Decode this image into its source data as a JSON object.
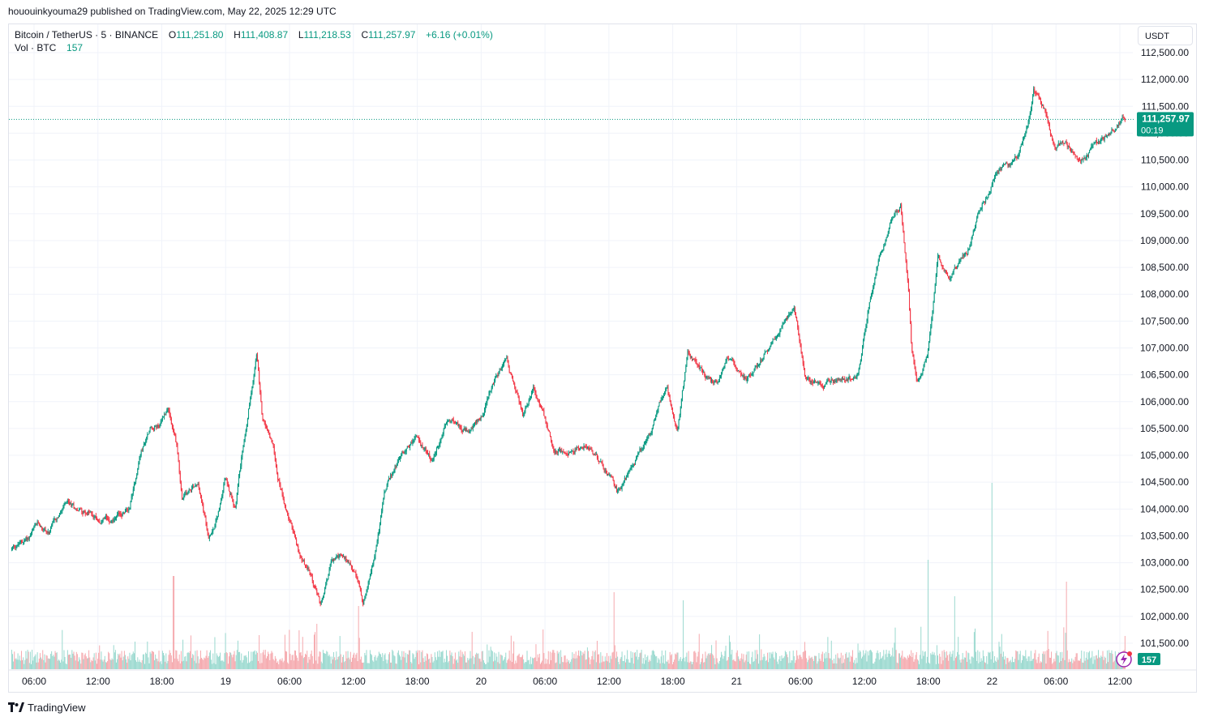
{
  "header": {
    "published_text": "hououinkyouma29 published on TradingView.com, May 22, 2025 12:29 UTC"
  },
  "legend": {
    "symbol": "Bitcoin / TetherUS · 5 · BINANCE",
    "open_label": "O",
    "open": "111,251.80",
    "high_label": "H",
    "high": "111,408.87",
    "low_label": "L",
    "low": "111,218.53",
    "close_label": "C",
    "close": "111,257.97",
    "change": "+6.16 (+0.01%)",
    "vol_label": "Vol · BTC",
    "vol_value": "157"
  },
  "currency_button": "USDT",
  "footer": {
    "brand": "TradingView"
  },
  "colors": {
    "up": "#089981",
    "down": "#f23645",
    "grid": "#f0f3fa",
    "vol_up": "#9ad9cf",
    "vol_down": "#f5a9ae"
  },
  "chart_data": {
    "type": "candlestick",
    "interval": "5",
    "y_tick_labels": [
      "112,500.00",
      "112,000.00",
      "111,500.00",
      "111,000.00",
      "110,500.00",
      "110,000.00",
      "109,500.00",
      "109,000.00",
      "108,500.00",
      "108,000.00",
      "107,500.00",
      "107,000.00",
      "106,500.00",
      "106,000.00",
      "105,500.00",
      "105,000.00",
      "104,500.00",
      "104,000.00",
      "103,500.00",
      "103,000.00",
      "102,500.00",
      "102,000.00",
      "101,500.00"
    ],
    "y_ticks": [
      112500,
      112000,
      111500,
      111000,
      110500,
      110000,
      109500,
      109000,
      108500,
      108000,
      107500,
      107000,
      106500,
      106000,
      105500,
      105000,
      104500,
      104000,
      103500,
      103000,
      102500,
      102000,
      101500
    ],
    "x_tick_labels": [
      "06:00",
      "12:00",
      "18:00",
      "19",
      "06:00",
      "12:00",
      "18:00",
      "20",
      "06:00",
      "12:00",
      "18:00",
      "21",
      "06:00",
      "12:00",
      "18:00",
      "22",
      "06:00",
      "12:00"
    ],
    "x_tick_hours": [
      6,
      12,
      18,
      24,
      30,
      36,
      42,
      48,
      54,
      60,
      66,
      72,
      78,
      84,
      90,
      96,
      102,
      108
    ],
    "time_start_hours": 3.9,
    "time_end_hours": 108.5,
    "price_path": [
      [
        3.9,
        103250
      ],
      [
        5.5,
        103450
      ],
      [
        6.5,
        103700
      ],
      [
        7.5,
        103550
      ],
      [
        9,
        104050
      ],
      [
        11,
        103950
      ],
      [
        12.5,
        103800
      ],
      [
        14,
        103850
      ],
      [
        15,
        104000
      ],
      [
        16,
        105000
      ],
      [
        17,
        105500
      ],
      [
        18,
        105600
      ],
      [
        18.7,
        105900
      ],
      [
        19.5,
        105200
      ],
      [
        20,
        104150
      ],
      [
        21.5,
        104550
      ],
      [
        22.5,
        103400
      ],
      [
        23.5,
        104000
      ],
      [
        24,
        104550
      ],
      [
        25,
        104100
      ],
      [
        26,
        105600
      ],
      [
        27,
        106900
      ],
      [
        27.5,
        105700
      ],
      [
        28.5,
        105200
      ],
      [
        29,
        104600
      ],
      [
        30,
        103900
      ],
      [
        31,
        103150
      ],
      [
        32,
        102800
      ],
      [
        33,
        102200
      ],
      [
        34,
        103000
      ],
      [
        35,
        103100
      ],
      [
        36,
        102950
      ],
      [
        37,
        102250
      ],
      [
        38,
        103000
      ],
      [
        39,
        104300
      ],
      [
        40.5,
        105000
      ],
      [
        42,
        105350
      ],
      [
        43.5,
        104850
      ],
      [
        45,
        105700
      ],
      [
        47,
        105400
      ],
      [
        48,
        105700
      ],
      [
        49.5,
        106400
      ],
      [
        50.5,
        106800
      ],
      [
        52,
        105700
      ],
      [
        53,
        106300
      ],
      [
        54,
        105700
      ],
      [
        55,
        105100
      ],
      [
        56.5,
        105100
      ],
      [
        58,
        105200
      ],
      [
        59.5,
        104750
      ],
      [
        61,
        104300
      ],
      [
        62.5,
        104900
      ],
      [
        64,
        105400
      ],
      [
        65.5,
        106350
      ],
      [
        66.5,
        105450
      ],
      [
        67.5,
        106900
      ],
      [
        69,
        106500
      ],
      [
        70,
        106300
      ],
      [
        71.5,
        106800
      ],
      [
        73,
        106400
      ],
      [
        75,
        107000
      ],
      [
        76.5,
        107500
      ],
      [
        77.5,
        107850
      ],
      [
        78.5,
        106500
      ],
      [
        80,
        106250
      ],
      [
        82,
        106400
      ],
      [
        83.5,
        106500
      ],
      [
        84.5,
        107800
      ],
      [
        85.5,
        108700
      ],
      [
        86.5,
        109300
      ],
      [
        87.5,
        109650
      ],
      [
        88.2,
        108200
      ],
      [
        88.5,
        107100
      ],
      [
        89,
        106300
      ],
      [
        90,
        106900
      ],
      [
        91,
        108700
      ],
      [
        92,
        108300
      ],
      [
        93,
        108600
      ],
      [
        94,
        108900
      ],
      [
        95,
        109650
      ],
      [
        96.5,
        110200
      ],
      [
        97.5,
        110400
      ],
      [
        98.5,
        110500
      ],
      [
        99.5,
        111200
      ],
      [
        100,
        111800
      ],
      [
        101,
        111400
      ],
      [
        102,
        110700
      ],
      [
        103,
        110850
      ],
      [
        104,
        110500
      ],
      [
        105,
        110600
      ],
      [
        106.2,
        110850
      ],
      [
        107.5,
        111100
      ],
      [
        108.5,
        111258
      ]
    ],
    "last_price_label": "111,257.97",
    "last_price": 111257.97,
    "countdown": "00:19",
    "current_volume": "157",
    "volume_spikes": [
      [
        19.1,
        115
      ],
      [
        36.5,
        78
      ],
      [
        60.5,
        95
      ],
      [
        67,
        85
      ],
      [
        90,
        135
      ],
      [
        96,
        230
      ],
      [
        92.5,
        90
      ],
      [
        103,
        108
      ]
    ]
  }
}
